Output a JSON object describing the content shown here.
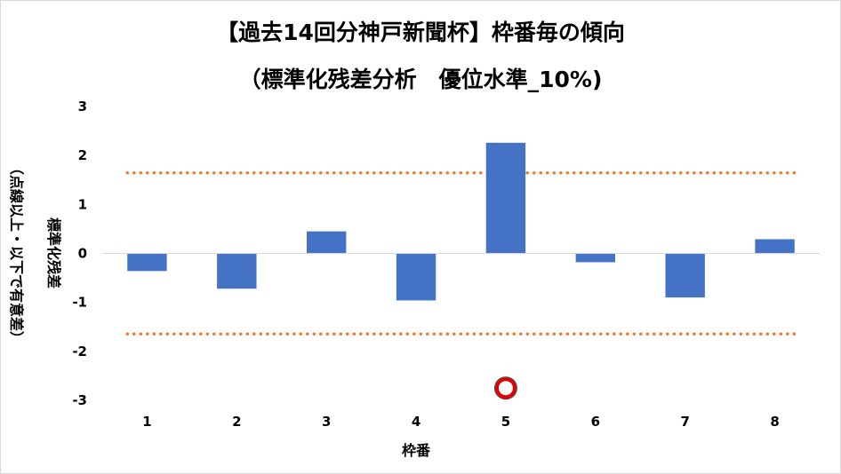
{
  "chart_data": {
    "type": "bar",
    "title": "【過去14回分神戸新聞杯】枠番毎の傾向",
    "subtitle": "（標準化残差分析　優位水準_10%)",
    "xlabel": "枠番",
    "ylabel": "標準化残差",
    "ylabel_note": "（点線以上・以下で有意差）",
    "categories": [
      "1",
      "2",
      "3",
      "4",
      "5",
      "6",
      "7",
      "8"
    ],
    "values": [
      -0.36,
      -0.72,
      0.45,
      -0.96,
      2.26,
      -0.18,
      -0.9,
      0.29
    ],
    "ylim": [
      -3,
      3
    ],
    "yticks": [
      "3",
      "2",
      "1",
      "0",
      "-1",
      "-2",
      "-3"
    ],
    "ytick_values": [
      3,
      2,
      1,
      0,
      -1,
      -2,
      -3
    ],
    "thresholds": [
      1.645,
      -1.645
    ],
    "highlight_category": "5",
    "highlight_y": -2.75,
    "grid": false,
    "legend": "none",
    "colors": {
      "bar": "#4472c4",
      "threshold": "#ed7d31",
      "marker_ring": "#e00000",
      "axis": "#d9d9d9"
    }
  }
}
